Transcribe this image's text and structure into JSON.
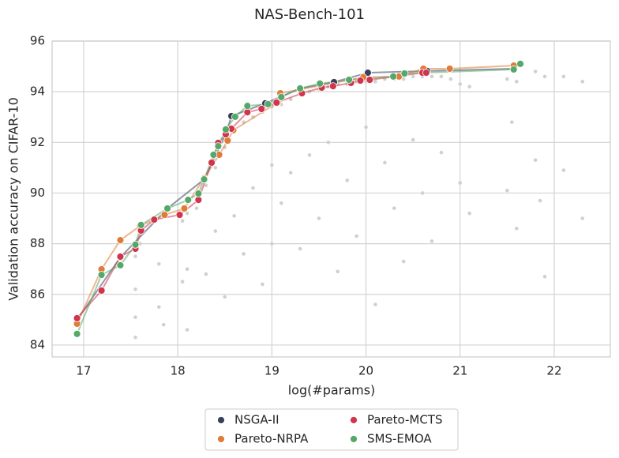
{
  "chart_data": {
    "type": "scatter",
    "title": "NAS-Bench-101",
    "x_label": "log(#params)",
    "y_label": "Validation accuracy on CIFAR-10",
    "xlim": [
      16.665,
      22.596
    ],
    "ylim": [
      83.53,
      96
    ],
    "xticks": [
      17,
      18,
      19,
      20,
      21,
      22
    ],
    "yticks": [
      84,
      86,
      88,
      90,
      92,
      94,
      96
    ],
    "grid": true,
    "legend": "bottom",
    "background": {
      "color": "#d0d0d0",
      "x": [
        17.55,
        17.55,
        17.55,
        17.55,
        17.6,
        17.8,
        17.8,
        17.85,
        18.05,
        18.05,
        18.1,
        18.1,
        18.1,
        18.2,
        18.3,
        18.3,
        18.4,
        18.4,
        18.5,
        18.5,
        18.6,
        18.6,
        18.7,
        18.7,
        18.8,
        18.8,
        18.9,
        18.9,
        19.0,
        19.0,
        19.0,
        19.1,
        19.1,
        19.2,
        19.2,
        19.3,
        19.3,
        19.4,
        19.4,
        19.5,
        19.5,
        19.6,
        19.6,
        19.7,
        19.7,
        19.8,
        19.8,
        19.9,
        19.9,
        20.0,
        20.0,
        20.1,
        20.1,
        20.2,
        20.2,
        20.3,
        20.3,
        20.4,
        20.4,
        20.5,
        20.5,
        20.6,
        20.6,
        20.7,
        20.7,
        20.8,
        20.8,
        20.9,
        21.0,
        21.0,
        21.1,
        21.1,
        21.5,
        21.5,
        21.55,
        21.6,
        21.6,
        21.8,
        21.8,
        21.85,
        21.9,
        21.9,
        22.1,
        22.1,
        22.3,
        22.3
      ],
      "y": [
        87.5,
        86.2,
        85.1,
        84.3,
        88.0,
        87.2,
        85.5,
        84.8,
        88.9,
        86.5,
        89.2,
        87.0,
        84.6,
        89.4,
        90.3,
        86.8,
        91.0,
        88.5,
        91.8,
        85.9,
        92.5,
        89.1,
        92.8,
        87.6,
        93.0,
        90.2,
        93.2,
        86.4,
        93.4,
        91.1,
        88.0,
        93.5,
        89.6,
        93.7,
        90.8,
        93.9,
        87.8,
        94.0,
        91.5,
        94.1,
        89.0,
        94.2,
        92.0,
        94.3,
        86.9,
        94.3,
        90.5,
        94.4,
        88.3,
        94.4,
        92.6,
        94.4,
        85.6,
        94.5,
        91.2,
        94.5,
        89.4,
        94.5,
        87.3,
        94.6,
        92.1,
        94.6,
        90.0,
        94.6,
        88.1,
        94.6,
        91.6,
        94.5,
        94.3,
        90.4,
        94.2,
        89.2,
        94.5,
        90.1,
        92.8,
        94.4,
        88.6,
        94.8,
        91.3,
        89.7,
        94.6,
        86.7,
        94.6,
        90.9,
        94.4,
        89.0
      ]
    },
    "series": [
      {
        "name": "NSGA-II",
        "color": "#3b3f5c",
        "x": [
          16.93,
          17.39,
          17.89,
          18.28,
          18.51,
          18.57,
          18.93,
          19.3,
          19.66,
          20.02,
          20.65,
          21.57
        ],
        "values": [
          85.0,
          87.46,
          89.39,
          90.54,
          92.32,
          93.04,
          93.54,
          94.13,
          94.38,
          94.75,
          94.82,
          94.91
        ]
      },
      {
        "name": "Pareto-NRPA",
        "color": "#e07b39",
        "x": [
          16.93,
          17.19,
          17.39,
          17.6,
          17.86,
          18.07,
          18.28,
          18.44,
          18.53,
          18.59,
          19.06,
          19.09,
          19.97,
          20.35,
          20.61,
          20.89,
          21.57
        ],
        "values": [
          84.84,
          86.99,
          88.14,
          88.7,
          89.14,
          89.39,
          90.58,
          91.51,
          92.07,
          92.48,
          93.57,
          93.94,
          94.57,
          94.6,
          94.91,
          94.91,
          95.03
        ]
      },
      {
        "name": "Pareto-MCTS",
        "color": "#d1344b",
        "x": [
          16.93,
          17.19,
          17.39,
          17.55,
          17.61,
          17.75,
          18.02,
          18.22,
          18.36,
          18.43,
          18.51,
          18.57,
          18.74,
          18.89,
          19.05,
          19.32,
          19.53,
          19.65,
          19.84,
          19.94,
          20.04,
          20.6,
          20.64
        ],
        "values": [
          85.06,
          86.15,
          87.49,
          87.8,
          88.52,
          88.95,
          89.14,
          89.73,
          91.2,
          91.98,
          92.32,
          92.54,
          93.19,
          93.32,
          93.57,
          93.94,
          94.16,
          94.22,
          94.35,
          94.44,
          94.47,
          94.75,
          94.75
        ]
      },
      {
        "name": "SMS-EMOA",
        "color": "#55a868",
        "x": [
          16.93,
          17.19,
          17.39,
          17.55,
          17.61,
          17.89,
          18.11,
          18.22,
          18.28,
          18.38,
          18.43,
          18.51,
          18.61,
          18.74,
          18.96,
          19.1,
          19.3,
          19.51,
          19.82,
          20.29,
          20.41,
          21.57,
          21.64
        ],
        "values": [
          84.44,
          86.77,
          87.15,
          87.96,
          88.74,
          89.39,
          89.73,
          89.98,
          90.54,
          91.51,
          91.85,
          92.51,
          93.01,
          93.44,
          93.51,
          93.79,
          94.13,
          94.32,
          94.47,
          94.6,
          94.72,
          94.88,
          95.1
        ]
      }
    ]
  }
}
